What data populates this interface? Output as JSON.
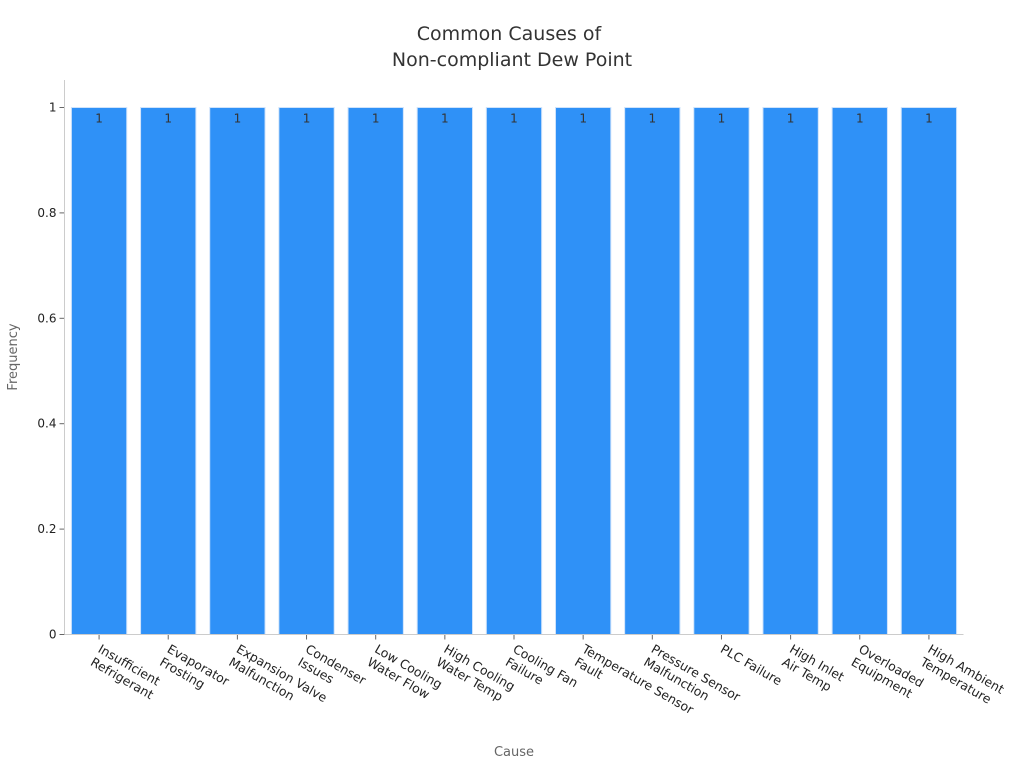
{
  "chart_data": {
    "type": "bar",
    "title": [
      "Common Causes of",
      "Non-compliant Dew Point"
    ],
    "xlabel": "Cause",
    "ylabel": "Frequency",
    "ylim": [
      0,
      1.05
    ],
    "yticks": [
      0,
      0.2,
      0.4,
      0.6,
      0.8,
      1
    ],
    "ytick_labels": [
      "0",
      "0.2",
      "0.4",
      "0.6",
      "0.8",
      "1"
    ],
    "grid": false,
    "bar_color": "#2f91f7",
    "categories": [
      [
        "Insufficient",
        "Refrigerant"
      ],
      [
        "Evaporator",
        "Frosting"
      ],
      [
        "Expansion Valve",
        "Malfunction"
      ],
      [
        "Condenser",
        "Issues"
      ],
      [
        "Low Cooling",
        "Water Flow"
      ],
      [
        "High Cooling",
        "Water Temp"
      ],
      [
        "Cooling Fan",
        "Failure"
      ],
      [
        "Temperature Sensor",
        "Fault"
      ],
      [
        "Pressure Sensor",
        "Malfunction"
      ],
      [
        "PLC Failure"
      ],
      [
        "High Inlet",
        "Air Temp"
      ],
      [
        "Overloaded",
        "Equipment"
      ],
      [
        "High Ambient",
        "Temperature"
      ]
    ],
    "values": [
      1,
      1,
      1,
      1,
      1,
      1,
      1,
      1,
      1,
      1,
      1,
      1,
      1
    ],
    "data_labels": [
      "1",
      "1",
      "1",
      "1",
      "1",
      "1",
      "1",
      "1",
      "1",
      "1",
      "1",
      "1",
      "1"
    ]
  }
}
